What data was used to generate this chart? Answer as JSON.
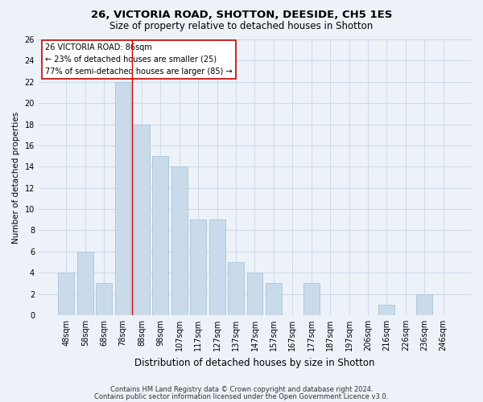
{
  "title1": "26, VICTORIA ROAD, SHOTTON, DEESIDE, CH5 1ES",
  "title2": "Size of property relative to detached houses in Shotton",
  "xlabel": "Distribution of detached houses by size in Shotton",
  "ylabel": "Number of detached properties",
  "categories": [
    "48sqm",
    "58sqm",
    "68sqm",
    "78sqm",
    "88sqm",
    "98sqm",
    "107sqm",
    "117sqm",
    "127sqm",
    "137sqm",
    "147sqm",
    "157sqm",
    "167sqm",
    "177sqm",
    "187sqm",
    "197sqm",
    "206sqm",
    "216sqm",
    "226sqm",
    "236sqm",
    "246sqm"
  ],
  "values": [
    4,
    6,
    3,
    22,
    18,
    15,
    14,
    9,
    9,
    5,
    4,
    3,
    0,
    3,
    0,
    0,
    0,
    1,
    0,
    2,
    0
  ],
  "bar_color": "#c9daea",
  "bar_edgecolor": "#b0c8dc",
  "redline_x": 3.5,
  "annotation_line1": "26 VICTORIA ROAD: 86sqm",
  "annotation_line2": "← 23% of detached houses are smaller (25)",
  "annotation_line3": "77% of semi-detached houses are larger (85) →",
  "annotation_box_color": "#ffffff",
  "annotation_box_edgecolor": "#cc0000",
  "ylim": [
    0,
    26
  ],
  "yticks": [
    0,
    2,
    4,
    6,
    8,
    10,
    12,
    14,
    16,
    18,
    20,
    22,
    24,
    26
  ],
  "grid_color": "#cdd8e8",
  "background_color": "#edf2f9",
  "footnote1": "Contains HM Land Registry data © Crown copyright and database right 2024.",
  "footnote2": "Contains public sector information licensed under the Open Government Licence v3.0.",
  "title1_fontsize": 9.5,
  "title2_fontsize": 8.5,
  "xlabel_fontsize": 8.5,
  "ylabel_fontsize": 7.5,
  "tick_fontsize": 7,
  "annotation_fontsize": 7,
  "footnote_fontsize": 6
}
